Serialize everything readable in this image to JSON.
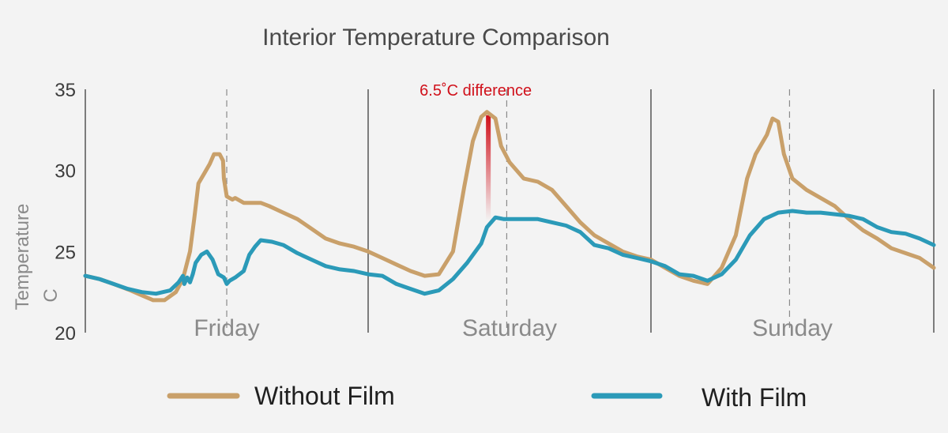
{
  "chart_data": {
    "type": "line",
    "title": "Interior   Temperature Comparison",
    "ylabel_line1": "Temperature",
    "ylabel_line2": "C",
    "ylim": [
      20,
      35
    ],
    "yticks": [
      20,
      25,
      30,
      35
    ],
    "xlim": [
      0,
      3
    ],
    "days": [
      "Friday",
      "Saturday",
      "Sunday"
    ],
    "peak_markers": [
      0.5,
      1.49,
      2.49
    ],
    "annotation": {
      "text": "6.5˚C difference",
      "x": 1.425,
      "y_high": 33.4,
      "y_low": 26.9
    },
    "grid": false,
    "legend_position": "bottom",
    "series": [
      {
        "name": "Without Film",
        "color": "#c9a06a",
        "points": [
          [
            0.0,
            23.5
          ],
          [
            0.05,
            23.3
          ],
          [
            0.1,
            23.0
          ],
          [
            0.16,
            22.6
          ],
          [
            0.2,
            22.3
          ],
          [
            0.24,
            22.0
          ],
          [
            0.28,
            22.0
          ],
          [
            0.32,
            22.5
          ],
          [
            0.345,
            23.3
          ],
          [
            0.37,
            25.0
          ],
          [
            0.385,
            27.0
          ],
          [
            0.4,
            29.2
          ],
          [
            0.42,
            29.8
          ],
          [
            0.44,
            30.4
          ],
          [
            0.455,
            31.0
          ],
          [
            0.475,
            31.0
          ],
          [
            0.487,
            30.6
          ],
          [
            0.49,
            29.5
          ],
          [
            0.5,
            28.4
          ],
          [
            0.51,
            28.3
          ],
          [
            0.52,
            28.2
          ],
          [
            0.53,
            28.3
          ],
          [
            0.56,
            28.0
          ],
          [
            0.58,
            28.0
          ],
          [
            0.6,
            28.0
          ],
          [
            0.62,
            28.0
          ],
          [
            0.65,
            27.8
          ],
          [
            0.7,
            27.4
          ],
          [
            0.75,
            27.0
          ],
          [
            0.8,
            26.4
          ],
          [
            0.85,
            25.8
          ],
          [
            0.9,
            25.5
          ],
          [
            0.95,
            25.3
          ],
          [
            1.0,
            25.0
          ],
          [
            1.05,
            24.6
          ],
          [
            1.1,
            24.2
          ],
          [
            1.15,
            23.8
          ],
          [
            1.2,
            23.5
          ],
          [
            1.25,
            23.6
          ],
          [
            1.3,
            25.0
          ],
          [
            1.34,
            29.0
          ],
          [
            1.37,
            31.8
          ],
          [
            1.4,
            33.3
          ],
          [
            1.42,
            33.6
          ],
          [
            1.45,
            33.2
          ],
          [
            1.47,
            31.5
          ],
          [
            1.5,
            30.5
          ],
          [
            1.55,
            29.5
          ],
          [
            1.6,
            29.3
          ],
          [
            1.65,
            28.8
          ],
          [
            1.7,
            27.8
          ],
          [
            1.75,
            26.8
          ],
          [
            1.8,
            26.0
          ],
          [
            1.85,
            25.5
          ],
          [
            1.9,
            25.0
          ],
          [
            1.95,
            24.7
          ],
          [
            2.0,
            24.5
          ],
          [
            2.05,
            24.0
          ],
          [
            2.1,
            23.5
          ],
          [
            2.15,
            23.2
          ],
          [
            2.2,
            23.0
          ],
          [
            2.25,
            24.0
          ],
          [
            2.3,
            26.0
          ],
          [
            2.34,
            29.5
          ],
          [
            2.37,
            31.0
          ],
          [
            2.41,
            32.2
          ],
          [
            2.43,
            33.2
          ],
          [
            2.45,
            33.0
          ],
          [
            2.47,
            31.0
          ],
          [
            2.5,
            29.5
          ],
          [
            2.55,
            28.8
          ],
          [
            2.6,
            28.3
          ],
          [
            2.65,
            27.8
          ],
          [
            2.7,
            27.0
          ],
          [
            2.75,
            26.3
          ],
          [
            2.8,
            25.8
          ],
          [
            2.85,
            25.2
          ],
          [
            2.9,
            24.9
          ],
          [
            2.95,
            24.6
          ],
          [
            3.0,
            24.0
          ]
        ]
      },
      {
        "name": "With Film",
        "color": "#2b9ab8",
        "points": [
          [
            0.0,
            23.5
          ],
          [
            0.05,
            23.3
          ],
          [
            0.1,
            23.0
          ],
          [
            0.15,
            22.7
          ],
          [
            0.2,
            22.5
          ],
          [
            0.25,
            22.4
          ],
          [
            0.3,
            22.6
          ],
          [
            0.33,
            23.1
          ],
          [
            0.345,
            23.5
          ],
          [
            0.35,
            23.0
          ],
          [
            0.36,
            23.4
          ],
          [
            0.37,
            23.1
          ],
          [
            0.38,
            23.6
          ],
          [
            0.39,
            24.3
          ],
          [
            0.41,
            24.8
          ],
          [
            0.43,
            25.0
          ],
          [
            0.45,
            24.5
          ],
          [
            0.47,
            23.6
          ],
          [
            0.49,
            23.4
          ],
          [
            0.5,
            23.0
          ],
          [
            0.51,
            23.2
          ],
          [
            0.53,
            23.4
          ],
          [
            0.56,
            23.8
          ],
          [
            0.58,
            24.8
          ],
          [
            0.6,
            25.3
          ],
          [
            0.62,
            25.7
          ],
          [
            0.66,
            25.6
          ],
          [
            0.7,
            25.4
          ],
          [
            0.75,
            24.9
          ],
          [
            0.8,
            24.5
          ],
          [
            0.85,
            24.1
          ],
          [
            0.9,
            23.9
          ],
          [
            0.95,
            23.8
          ],
          [
            1.0,
            23.6
          ],
          [
            1.05,
            23.5
          ],
          [
            1.1,
            23.0
          ],
          [
            1.15,
            22.7
          ],
          [
            1.2,
            22.4
          ],
          [
            1.25,
            22.6
          ],
          [
            1.3,
            23.3
          ],
          [
            1.35,
            24.3
          ],
          [
            1.4,
            25.5
          ],
          [
            1.42,
            26.5
          ],
          [
            1.45,
            27.1
          ],
          [
            1.48,
            27.0
          ],
          [
            1.52,
            27.0
          ],
          [
            1.6,
            27.0
          ],
          [
            1.65,
            26.8
          ],
          [
            1.7,
            26.6
          ],
          [
            1.75,
            26.2
          ],
          [
            1.8,
            25.4
          ],
          [
            1.85,
            25.2
          ],
          [
            1.9,
            24.8
          ],
          [
            1.95,
            24.6
          ],
          [
            2.0,
            24.4
          ],
          [
            2.05,
            24.1
          ],
          [
            2.1,
            23.6
          ],
          [
            2.15,
            23.5
          ],
          [
            2.2,
            23.2
          ],
          [
            2.25,
            23.6
          ],
          [
            2.3,
            24.5
          ],
          [
            2.35,
            26.0
          ],
          [
            2.4,
            27.0
          ],
          [
            2.45,
            27.4
          ],
          [
            2.5,
            27.5
          ],
          [
            2.55,
            27.4
          ],
          [
            2.6,
            27.4
          ],
          [
            2.65,
            27.3
          ],
          [
            2.7,
            27.2
          ],
          [
            2.75,
            27.0
          ],
          [
            2.8,
            26.5
          ],
          [
            2.85,
            26.2
          ],
          [
            2.9,
            26.1
          ],
          [
            2.95,
            25.8
          ],
          [
            3.0,
            25.4
          ]
        ]
      }
    ]
  }
}
